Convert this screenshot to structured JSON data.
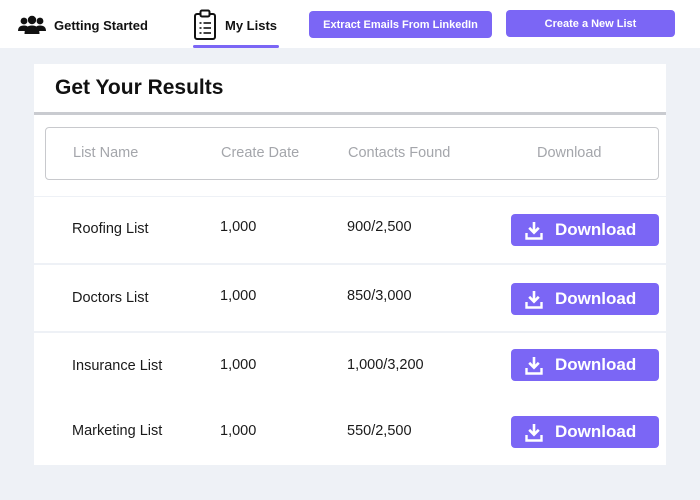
{
  "nav": {
    "getting_started": "Getting Started",
    "my_lists": "My Lists"
  },
  "buttons": {
    "extract": "Extract Emails From LinkedIn",
    "create": "Create a New List"
  },
  "results": {
    "title": "Get Your Results",
    "columns": [
      "List Name",
      "Create Date",
      "Contacts Found",
      "Download"
    ],
    "download_label": "Download",
    "rows": [
      {
        "name": "Roofing List",
        "date": "1,000",
        "contacts": "900/2,500"
      },
      {
        "name": "Doctors List",
        "date": "1,000",
        "contacts": "850/3,000"
      },
      {
        "name": "Insurance List",
        "date": "1,000",
        "contacts": "1,000/3,200"
      },
      {
        "name": "Marketing List",
        "date": "1,000",
        "contacts": "550/2,500"
      }
    ]
  },
  "colors": {
    "accent": "#7b66f5",
    "page_bg": "#eef1f6",
    "header_text": "#a4a6ab"
  },
  "icons": {
    "getting_started": "group-icon",
    "my_lists": "clipboard-list-icon",
    "download": "download-icon"
  }
}
